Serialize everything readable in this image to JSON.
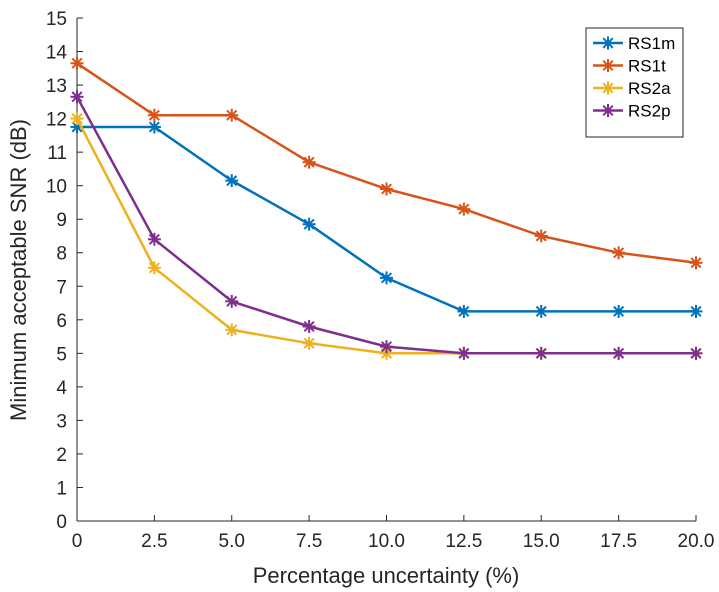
{
  "chart_data": {
    "type": "line",
    "title": "",
    "xlabel": "Percentage uncertainty (%)",
    "ylabel": "Minimum acceptable SNR (dB)",
    "x": [
      0,
      2.5,
      5.0,
      7.5,
      10.0,
      12.5,
      15.0,
      17.5,
      20.0
    ],
    "x_tick_labels": [
      "0",
      "2.5",
      "5.0",
      "7.5",
      "10.0",
      "12.5",
      "15.0",
      "17.5",
      "20.0"
    ],
    "y_ticks": [
      0,
      1,
      2,
      3,
      4,
      5,
      6,
      7,
      8,
      9,
      10,
      11,
      12,
      13,
      14,
      15
    ],
    "xlim": [
      0,
      20
    ],
    "ylim": [
      0,
      15
    ],
    "legend_position": "top-right",
    "grid": false,
    "series": [
      {
        "name": "RS1m",
        "color": "#0072BD",
        "values": [
          11.75,
          11.75,
          10.15,
          8.85,
          7.25,
          6.25,
          6.25,
          6.25,
          6.25
        ]
      },
      {
        "name": "RS1t",
        "color": "#D95319",
        "values": [
          13.65,
          12.1,
          12.1,
          10.7,
          9.9,
          9.3,
          8.5,
          8.0,
          7.7
        ]
      },
      {
        "name": "RS2a",
        "color": "#EDB120",
        "values": [
          12.0,
          7.55,
          5.7,
          5.3,
          5.0,
          5.0,
          5.0,
          5.0,
          5.0
        ]
      },
      {
        "name": "RS2p",
        "color": "#7E2F8E",
        "values": [
          12.65,
          8.4,
          6.55,
          5.8,
          5.2,
          5.0,
          5.0,
          5.0,
          5.0
        ]
      }
    ]
  }
}
